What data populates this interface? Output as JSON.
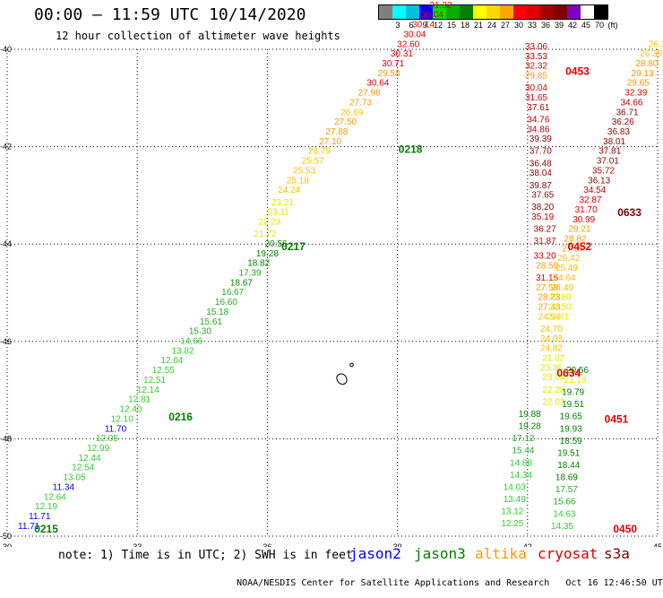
{
  "header": {
    "title": "00:00 – 11:59 UTC 10/14/2020",
    "subtitle": "12 hour collection of altimeter wave heights"
  },
  "colorbar": {
    "colors": [
      "#808080",
      "#00ffff",
      "#00c0e0",
      "#0000ff",
      "#00e000",
      "#00b000",
      "#008000",
      "#ffff00",
      "#ffd700",
      "#ffa500",
      "#ff0000",
      "#e00000",
      "#a00000",
      "#800000",
      "#8000c0",
      "#ffffff",
      "#000000"
    ],
    "ticks": [
      "3",
      "6",
      "9",
      "12",
      "15",
      "18",
      "21",
      "24",
      "27",
      "30",
      "33",
      "36",
      "39",
      "42",
      "45",
      "70",
      "(ft)"
    ]
  },
  "axes": {
    "x_ticks": [
      "30",
      "33",
      "36",
      "39",
      "42",
      "45"
    ],
    "y_ticks": [
      "-40",
      "-42",
      "-44",
      "-46",
      "-48",
      "-50"
    ]
  },
  "chart_data": {
    "type": "scatter",
    "xlim": [
      30,
      45
    ],
    "ylim": [
      -50,
      -40
    ],
    "grid": true,
    "passes": [
      {
        "satellite": "jason3",
        "label": "0215",
        "label_pos": [
          30.9,
          -49.85
        ],
        "points": [
          [
            30.5,
            -49.85,
            "11.71"
          ],
          [
            30.75,
            -49.65,
            "11.71"
          ],
          [
            30.9,
            -49.45,
            "12.19"
          ],
          [
            31.1,
            -49.25,
            "12.64"
          ],
          [
            31.3,
            -49.05,
            "11.34"
          ],
          [
            31.55,
            -48.85,
            "13.05"
          ],
          [
            31.75,
            -48.65,
            "12.54"
          ],
          [
            31.9,
            -48.45,
            "12.44"
          ],
          [
            32.1,
            -48.25,
            "12.99"
          ],
          [
            32.3,
            -48.05,
            "12.05"
          ],
          [
            32.5,
            -47.85,
            "11.70"
          ],
          [
            32.65,
            -47.65,
            "12.10"
          ],
          [
            32.85,
            -47.45,
            "12.40"
          ],
          [
            33.05,
            -47.25,
            "12.81"
          ],
          [
            33.25,
            -47.05,
            "12.14"
          ],
          [
            33.4,
            -46.85,
            "12.51"
          ],
          [
            33.6,
            -46.65,
            "12.55"
          ],
          [
            33.8,
            -46.45,
            "12.64"
          ],
          [
            34.05,
            -46.25,
            "13.82"
          ],
          [
            34.25,
            -46.05,
            "14.66"
          ],
          [
            34.45,
            -45.85,
            "15.30"
          ],
          [
            34.7,
            -45.65,
            "15.61"
          ],
          [
            34.85,
            -45.45,
            "15.18"
          ],
          [
            35.05,
            -45.25,
            "16.60"
          ],
          [
            35.2,
            -45.05,
            "16.67"
          ],
          [
            35.4,
            -44.85,
            "18.67"
          ],
          [
            35.6,
            -44.65,
            "17.39"
          ],
          [
            35.8,
            -44.45,
            "18.82"
          ],
          [
            36.0,
            -44.25,
            "19.28"
          ],
          [
            36.2,
            -44.05,
            "20.56"
          ]
        ]
      },
      {
        "satellite": "jason3",
        "label": "0216",
        "label_pos": [
          34.0,
          -47.55
        ],
        "points": []
      },
      {
        "satellite": "jason3",
        "label": "0217",
        "label_pos": [
          36.6,
          -44.05
        ],
        "points": [
          [
            35.95,
            -43.85,
            "21.72"
          ],
          [
            36.05,
            -43.6,
            "22.23"
          ],
          [
            36.25,
            -43.4,
            "23.11"
          ],
          [
            36.35,
            -43.2,
            "23.21"
          ],
          [
            36.5,
            -42.95,
            "24.24"
          ],
          [
            36.7,
            -42.75,
            "25.18"
          ],
          [
            36.85,
            -42.55,
            "25.53"
          ],
          [
            37.05,
            -42.35,
            "25.57"
          ],
          [
            37.2,
            -42.15,
            "26.79"
          ],
          [
            37.45,
            -41.95,
            "27.10"
          ],
          [
            37.6,
            -41.75,
            "27.88"
          ],
          [
            37.8,
            -41.55,
            "27.50"
          ],
          [
            37.95,
            -41.35,
            "26.69"
          ],
          [
            38.15,
            -41.15,
            "27.73"
          ],
          [
            38.35,
            -40.95,
            "27.98"
          ],
          [
            38.55,
            -40.75,
            "30.64"
          ],
          [
            38.8,
            -40.55,
            "29.58"
          ],
          [
            38.9,
            -40.35,
            "30.71"
          ],
          [
            39.1,
            -40.15,
            "30.31"
          ],
          [
            39.25,
            -39.95,
            "32.60"
          ],
          [
            39.4,
            -39.75,
            "30.04"
          ],
          [
            39.6,
            -39.55,
            "30.14"
          ],
          [
            39.8,
            -39.35,
            "30.04"
          ],
          [
            40.0,
            -39.15,
            "31.32"
          ],
          [
            40.2,
            -38.95,
            "29.79"
          ],
          [
            40.35,
            -38.75,
            "29.98"
          ],
          [
            40.5,
            -38.55,
            "31.22"
          ],
          [
            40.7,
            -38.35,
            "31.91"
          ]
        ]
      },
      {
        "satellite": "jason3",
        "label": "0218",
        "label_pos": [
          39.3,
          -42.05
        ],
        "points": []
      },
      {
        "satellite": "cryosat",
        "label": "0453",
        "label_pos": [
          43.15,
          -40.45
        ],
        "points": [
          [
            42.2,
            -40.0,
            "33.06"
          ],
          [
            42.2,
            -40.2,
            "33.53"
          ],
          [
            42.2,
            -40.4,
            "32.32"
          ],
          [
            42.2,
            -40.6,
            "29.85"
          ],
          [
            42.2,
            -40.85,
            "30.04"
          ],
          [
            42.2,
            -41.05,
            "31.65"
          ],
          [
            42.25,
            -41.25,
            "37.61"
          ],
          [
            42.25,
            -41.5,
            "34.76"
          ],
          [
            42.25,
            -41.7,
            "34.86"
          ],
          [
            42.3,
            -41.9,
            "39.39"
          ],
          [
            42.3,
            -42.15,
            "37.70"
          ],
          [
            42.3,
            -42.4,
            "36.48"
          ],
          [
            42.3,
            -42.6,
            "38.04"
          ],
          [
            42.3,
            -42.85,
            "39.87"
          ],
          [
            42.35,
            -43.05,
            "37.65"
          ],
          [
            42.35,
            -43.3,
            "38.20"
          ],
          [
            42.35,
            -43.5,
            "35.19"
          ],
          [
            42.4,
            -43.75,
            "36.27"
          ],
          [
            42.4,
            -44.0,
            "31.87"
          ],
          [
            42.4,
            -44.3,
            "33.20"
          ],
          [
            42.45,
            -44.5,
            "28.59"
          ],
          [
            42.45,
            -44.75,
            "31.15"
          ],
          [
            42.45,
            -44.95,
            "27.58"
          ],
          [
            42.5,
            -45.15,
            "28.23"
          ],
          [
            42.5,
            -45.35,
            "27.43"
          ],
          [
            42.5,
            -45.55,
            "24.54"
          ],
          [
            42.55,
            -45.8,
            "24.70"
          ],
          [
            42.55,
            -46.0,
            "24.03"
          ],
          [
            42.55,
            -46.2,
            "24.82"
          ],
          [
            42.6,
            -46.4,
            "21.02"
          ],
          [
            42.55,
            -46.6,
            "23.35"
          ],
          [
            42.6,
            -46.8,
            "23.04"
          ],
          [
            42.6,
            -47.05,
            "22.28"
          ],
          [
            42.6,
            -47.3,
            "22.02"
          ],
          [
            42.05,
            -47.55,
            "19.88"
          ],
          [
            42.05,
            -47.8,
            "19.28"
          ],
          [
            41.9,
            -48.05,
            "17.12"
          ],
          [
            41.9,
            -48.3,
            "15.44"
          ],
          [
            41.85,
            -48.55,
            "14.88"
          ],
          [
            41.85,
            -48.8,
            "14.34"
          ],
          [
            41.7,
            -49.05,
            "14.03"
          ],
          [
            41.7,
            -49.3,
            "13.49"
          ],
          [
            41.65,
            -49.55,
            "13.12"
          ],
          [
            41.65,
            -49.8,
            "12.25"
          ]
        ]
      },
      {
        "satellite": "cryosat",
        "label": "0452",
        "label_pos": [
          43.2,
          -44.05
        ],
        "points": []
      },
      {
        "satellite": "cryosat",
        "label": "0634",
        "label_pos": [
          42.95,
          -46.65
        ],
        "points": []
      },
      {
        "satellite": "cryosat",
        "label": "0451",
        "label_pos": [
          44.05,
          -47.6
        ],
        "points": [
          [
            43.15,
            -46.65,
            "20.56"
          ],
          [
            43.1,
            -46.85,
            "21.18"
          ],
          [
            43.05,
            -47.1,
            "19.79"
          ],
          [
            43.05,
            -47.35,
            "19.51"
          ],
          [
            43.0,
            -47.6,
            "19.65"
          ],
          [
            43.0,
            -47.85,
            "19.93"
          ],
          [
            43.0,
            -48.1,
            "18.59"
          ],
          [
            42.95,
            -48.35,
            "19.51"
          ],
          [
            42.95,
            -48.6,
            "18.44"
          ],
          [
            42.9,
            -48.85,
            "18.69"
          ],
          [
            42.9,
            -49.1,
            "17.57"
          ],
          [
            42.85,
            -49.35,
            "15.66"
          ],
          [
            42.85,
            -49.6,
            "14.63"
          ],
          [
            42.8,
            -49.85,
            "14.35"
          ]
        ]
      },
      {
        "satellite": "cryosat",
        "label": "0450",
        "label_pos": [
          44.25,
          -49.85
        ],
        "points": []
      },
      {
        "satellite": "s3a",
        "label": "0633",
        "label_pos": [
          44.35,
          -43.35
        ],
        "points": [
          [
            45.05,
            -39.95,
            "26.32"
          ],
          [
            44.85,
            -40.15,
            "26.35"
          ],
          [
            44.75,
            -40.35,
            "28.80"
          ],
          [
            44.65,
            -40.55,
            "29.13"
          ],
          [
            44.55,
            -40.75,
            "29.65"
          ],
          [
            44.5,
            -40.95,
            "32.39"
          ],
          [
            44.4,
            -41.15,
            "34.66"
          ],
          [
            44.3,
            -41.35,
            "36.71"
          ],
          [
            44.2,
            -41.55,
            "36.26"
          ],
          [
            44.1,
            -41.75,
            "36.83"
          ],
          [
            44.0,
            -41.95,
            "38.01"
          ],
          [
            43.9,
            -42.15,
            "37.81"
          ],
          [
            43.85,
            -42.35,
            "37.01"
          ],
          [
            43.75,
            -42.55,
            "35.72"
          ],
          [
            43.65,
            -42.75,
            "36.13"
          ],
          [
            43.55,
            -42.95,
            "34.54"
          ],
          [
            43.45,
            -43.15,
            "32.87"
          ],
          [
            43.35,
            -43.35,
            "31.70"
          ],
          [
            43.3,
            -43.55,
            "30.99"
          ],
          [
            43.2,
            -43.75,
            "29.21"
          ],
          [
            43.1,
            -43.95,
            "28.82"
          ],
          [
            43.05,
            -44.15,
            "27.87"
          ],
          [
            42.95,
            -44.35,
            "26.42"
          ],
          [
            42.9,
            -44.55,
            "25.49"
          ],
          [
            42.85,
            -44.75,
            "24.64"
          ],
          [
            42.8,
            -44.95,
            "24.49"
          ],
          [
            42.75,
            -45.15,
            "23.80"
          ],
          [
            42.75,
            -45.35,
            "22.50"
          ],
          [
            42.7,
            -45.55,
            "22.41"
          ]
        ]
      }
    ]
  },
  "note": "note: 1) Time is in UTC; 2) SWH is in feet",
  "legend": [
    {
      "name": "jason2",
      "color": "#0000ff"
    },
    {
      "name": "jason3",
      "color": "#008000"
    },
    {
      "name": "altika",
      "color": "#ff9900"
    },
    {
      "name": "cryosat",
      "color": "#e00000"
    },
    {
      "name": "s3a",
      "color": "#800000"
    }
  ],
  "footer": {
    "source": "NOAA/NESDIS Center for Satellite Applications and Research",
    "timestamp": "Oct 16 12:46:50 UTC 2020"
  }
}
